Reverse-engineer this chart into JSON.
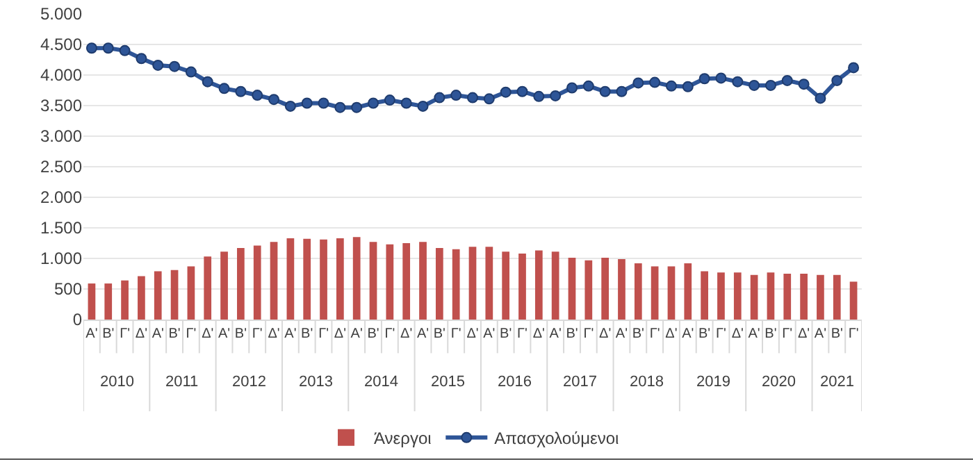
{
  "chart_data": {
    "type": "bar",
    "categories": [
      "Α'",
      "Β'",
      "Γ'",
      "Δ'",
      "Α'",
      "Β'",
      "Γ'",
      "Δ'",
      "Α'",
      "Β'",
      "Γ'",
      "Δ'",
      "Α'",
      "Β'",
      "Γ'",
      "Δ'",
      "Α'",
      "Β'",
      "Γ'",
      "Δ'",
      "Α'",
      "Β'",
      "Γ'",
      "Δ'",
      "Α'",
      "Β'",
      "Γ'",
      "Δ'",
      "Α'",
      "Β'",
      "Γ'",
      "Δ'",
      "Α'",
      "Β'",
      "Γ'",
      "Δ'",
      "Α'",
      "Β'",
      "Γ'",
      "Δ'",
      "Α'",
      "Β'",
      "Γ'",
      "Δ'",
      "Α'",
      "Β'",
      "Γ'"
    ],
    "annotations": [
      "2010",
      "2011",
      "2012",
      "2013",
      "2014",
      "2015",
      "2016",
      "2017",
      "2018",
      "2019",
      "2020",
      "2021"
    ],
    "series": [
      {
        "name": "Άνεργοι",
        "color": "#c0504d",
        "values": [
          590,
          590,
          640,
          710,
          790,
          810,
          870,
          1030,
          1110,
          1170,
          1210,
          1270,
          1330,
          1320,
          1310,
          1330,
          1350,
          1270,
          1230,
          1250,
          1270,
          1170,
          1150,
          1190,
          1190,
          1110,
          1080,
          1130,
          1110,
          1010,
          970,
          1010,
          990,
          920,
          870,
          870,
          920,
          790,
          770,
          770,
          730,
          770,
          750,
          750,
          730,
          730,
          620
        ]
      },
      {
        "name": "Απασχολούμενοι",
        "type": "line",
        "color": "#2e5597",
        "marker": "circle",
        "values": [
          4440,
          4440,
          4400,
          4270,
          4160,
          4140,
          4050,
          3890,
          3780,
          3730,
          3670,
          3600,
          3490,
          3540,
          3540,
          3470,
          3470,
          3540,
          3590,
          3540,
          3490,
          3630,
          3670,
          3630,
          3610,
          3720,
          3730,
          3650,
          3660,
          3790,
          3820,
          3730,
          3730,
          3870,
          3880,
          3820,
          3810,
          3940,
          3950,
          3890,
          3830,
          3830,
          3910,
          3850,
          3620,
          3910,
          4120
        ]
      }
    ],
    "ylim": [
      0,
      5000
    ],
    "yticks": [
      {
        "value": 0,
        "label": "0"
      },
      {
        "value": 500,
        "label": "500"
      },
      {
        "value": 1000,
        "label": "1.000"
      },
      {
        "value": 1500,
        "label": "1.500"
      },
      {
        "value": 2000,
        "label": "2.000"
      },
      {
        "value": 2500,
        "label": "2.500"
      },
      {
        "value": 3000,
        "label": "3.000"
      },
      {
        "value": 3500,
        "label": "3.500"
      },
      {
        "value": 4000,
        "label": "4.000"
      },
      {
        "value": 4500,
        "label": "4.500"
      },
      {
        "value": 5000,
        "label": "5.000"
      }
    ],
    "grid": "y",
    "legend": "bottom"
  }
}
